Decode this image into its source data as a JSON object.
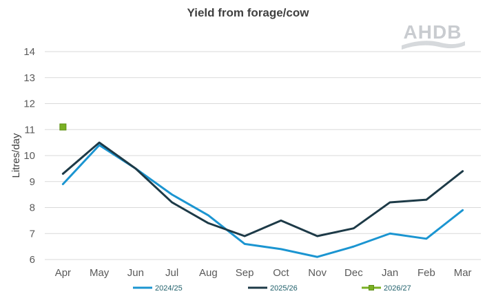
{
  "chart_data": {
    "type": "line",
    "title": "Yield from forage/cow",
    "xlabel": "",
    "ylabel": "Litres/day",
    "categories": [
      "Apr",
      "May",
      "Jun",
      "Jul",
      "Aug",
      "Sep",
      "Oct",
      "Nov",
      "Dec",
      "Jan",
      "Feb",
      "Mar"
    ],
    "ylim": [
      6,
      14
    ],
    "yticks": [
      "6",
      "7",
      "8",
      "9",
      "10",
      "11",
      "12",
      "13",
      "14"
    ],
    "grid": true,
    "legend_position": "bottom",
    "series": [
      {
        "name": "2024/25",
        "color": "#1b95d1",
        "marker": "none",
        "values": [
          8.9,
          10.4,
          9.5,
          8.5,
          7.7,
          6.6,
          6.4,
          6.1,
          6.5,
          7.0,
          6.8,
          7.9
        ]
      },
      {
        "name": "2025/26",
        "color": "#1d3a47",
        "marker": "none",
        "values": [
          9.3,
          10.5,
          9.5,
          8.2,
          7.4,
          6.9,
          7.5,
          6.9,
          7.2,
          8.2,
          8.3,
          9.4
        ]
      },
      {
        "name": "2026/27",
        "color": "#7ab024",
        "marker": "square",
        "values": [
          11.1,
          null,
          null,
          null,
          null,
          null,
          null,
          null,
          null,
          null,
          null,
          null
        ]
      }
    ]
  },
  "logo": {
    "text": "AHDB"
  }
}
